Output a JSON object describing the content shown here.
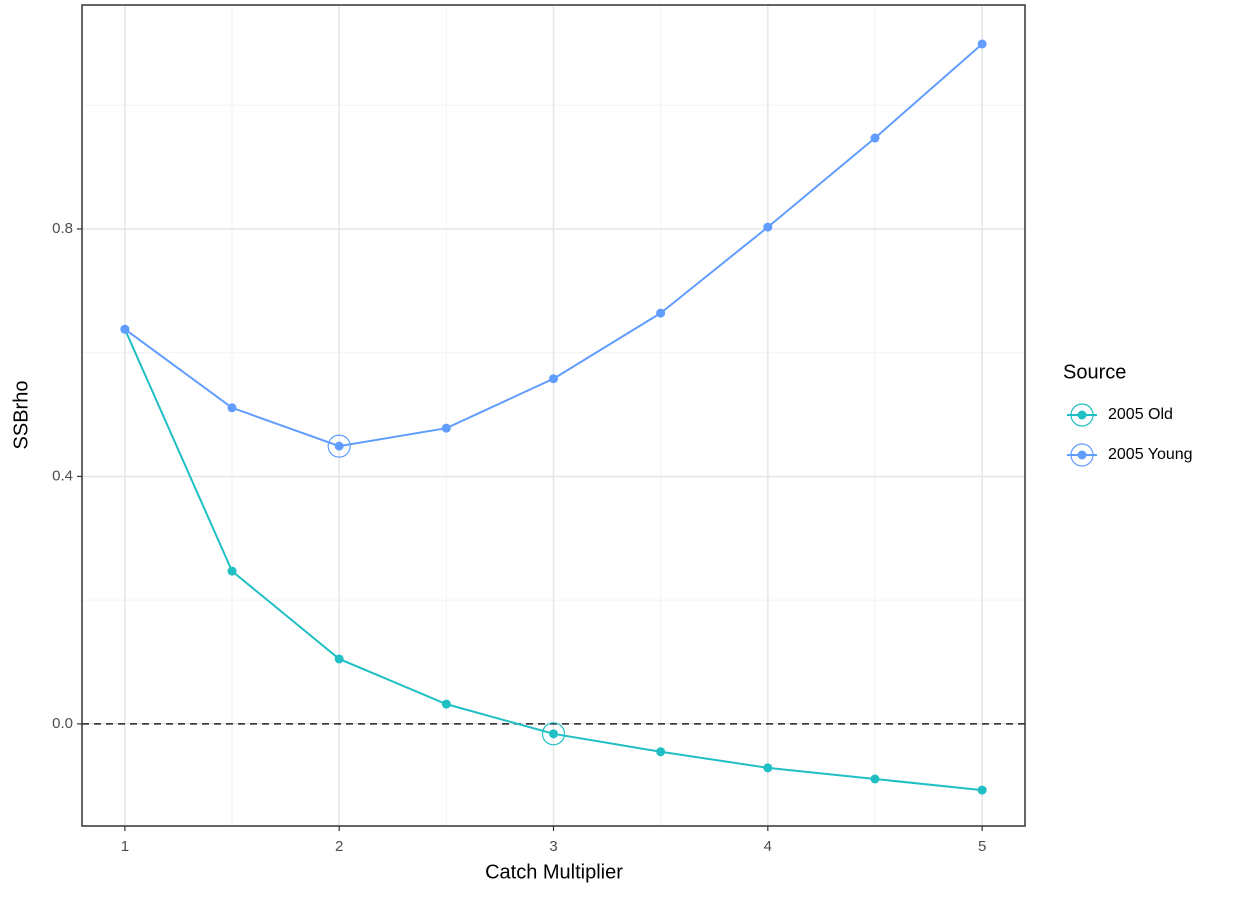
{
  "chart_data": {
    "type": "line",
    "x_label": "Catch Multiplier",
    "y_label": "SSBrho",
    "x": [
      1,
      1.5,
      2,
      2.5,
      3,
      3.5,
      4,
      4.5,
      5
    ],
    "series": [
      {
        "name": "2005 Old",
        "color": "#1fbfc4",
        "values": [
          0.638,
          0.247,
          0.105,
          0.032,
          -0.016,
          -0.045,
          -0.071,
          -0.089,
          -0.107
        ],
        "highlight": 4
      },
      {
        "name": "2005 Young",
        "color": "#619cff",
        "values": [
          0.638,
          0.511,
          0.449,
          0.478,
          0.558,
          0.664,
          0.803,
          0.947,
          1.099
        ],
        "highlight": 2
      }
    ],
    "xlim": [
      0.8,
      5.2
    ],
    "xticks": [
      1,
      2,
      3,
      4,
      5
    ],
    "ylim": [
      -0.165,
      1.162
    ],
    "yticks": [
      {
        "value": 0,
        "label": "0.0"
      },
      {
        "value": 0.4,
        "label": "0.4"
      },
      {
        "value": 0.8,
        "label": "0.8"
      }
    ],
    "hline": 0,
    "grid": true,
    "legend_title": "Source",
    "legend": "right"
  }
}
